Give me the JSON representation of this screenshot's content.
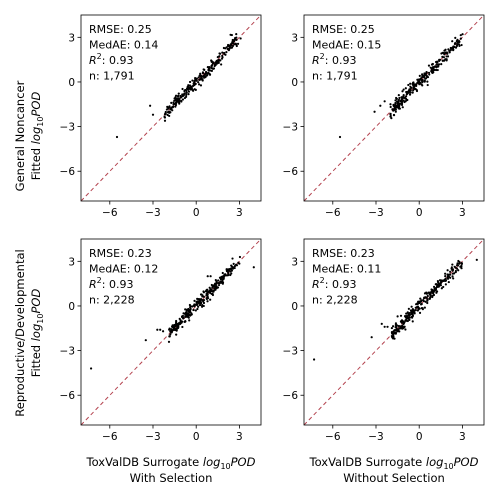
{
  "figure": {
    "row_labels": [
      {
        "line1": "General Noncancer",
        "line2_prefix": "Fitted ",
        "line2_math": "log",
        "line2_sub": "10",
        "line2_tail": "POD"
      },
      {
        "line1": "Reproductive/Developmental",
        "line2_prefix": "Fitted ",
        "line2_math": "log",
        "line2_sub": "10",
        "line2_tail": "POD"
      }
    ],
    "col_labels": [
      {
        "line1_prefix": "ToxValDB Surrogate ",
        "line1_math": "log",
        "line1_sub": "10",
        "line1_tail": "POD",
        "line2": "With Selection"
      },
      {
        "line1_prefix": "ToxValDB Surrogate ",
        "line1_math": "log",
        "line1_sub": "10",
        "line1_tail": "POD",
        "line2": "Without Selection"
      }
    ]
  },
  "chart_data": [
    {
      "type": "scatter",
      "panel": "General Noncancer / With Selection",
      "stats": {
        "rmse": "RMSE: 0.25",
        "medae": "MedAE: 0.14",
        "r2_prefix": "R",
        "r2_sup": "2",
        "r2_value": ": 0.93",
        "n": "n: 1,791"
      },
      "xlim": [
        -8,
        4.5
      ],
      "ylim": [
        -8,
        4.5
      ],
      "xticks": [
        -6,
        -3,
        0,
        3
      ],
      "yticks": [
        -6,
        -3,
        0,
        3
      ],
      "identity_line": true,
      "outliers": [
        [
          -5.5,
          -3.7
        ],
        [
          -3.2,
          -1.6
        ],
        [
          -3,
          -2.2
        ]
      ],
      "trend": {
        "x_range": [
          -2.2,
          3.1
        ],
        "spread": 0.22,
        "count": 260,
        "seed": 11
      }
    },
    {
      "type": "scatter",
      "panel": "General Noncancer / Without Selection",
      "stats": {
        "rmse": "RMSE: 0.25",
        "medae": "MedAE: 0.15",
        "r2_prefix": "R",
        "r2_sup": "2",
        "r2_value": ": 0.93",
        "n": "n: 1,791"
      },
      "xlim": [
        -8,
        4.5
      ],
      "ylim": [
        -8,
        4.5
      ],
      "xticks": [
        -6,
        -3,
        0,
        3
      ],
      "yticks": [
        -6,
        -3,
        0,
        3
      ],
      "identity_line": true,
      "outliers": [
        [
          -5.5,
          -3.7
        ],
        [
          -2.7,
          -1.6
        ],
        [
          -3.1,
          -2.0
        ],
        [
          -2.4,
          -1.3
        ]
      ],
      "trend": {
        "x_range": [
          -2.0,
          3.1
        ],
        "spread": 0.22,
        "count": 260,
        "seed": 23
      }
    },
    {
      "type": "scatter",
      "panel": "Reproductive/Developmental / With Selection",
      "stats": {
        "rmse": "RMSE: 0.23",
        "medae": "MedAE: 0.12",
        "r2_prefix": "R",
        "r2_sup": "2",
        "r2_value": ": 0.93",
        "n": "n: 2,228"
      },
      "xlim": [
        -8,
        4.5
      ],
      "ylim": [
        -8,
        4.5
      ],
      "xticks": [
        -6,
        -3,
        0,
        3
      ],
      "yticks": [
        -6,
        -3,
        0,
        3
      ],
      "identity_line": true,
      "outliers": [
        [
          -7.3,
          -4.2
        ],
        [
          -3.5,
          -2.3
        ],
        [
          -2.5,
          -1.6
        ],
        [
          -2.7,
          -1.6
        ],
        [
          -2.3,
          -1.7
        ],
        [
          4,
          2.6
        ],
        [
          0.8,
          2.0
        ],
        [
          1.0,
          2.0
        ]
      ],
      "trend": {
        "x_range": [
          -1.9,
          3.1
        ],
        "spread": 0.22,
        "count": 280,
        "seed": 37
      }
    },
    {
      "type": "scatter",
      "panel": "Reproductive/Developmental / Without Selection",
      "stats": {
        "rmse": "RMSE: 0.23",
        "medae": "MedAE: 0.11",
        "r2_prefix": "R",
        "r2_sup": "2",
        "r2_value": ": 0.93",
        "n": "n: 2,228"
      },
      "xlim": [
        -8,
        4.5
      ],
      "ylim": [
        -8,
        4.5
      ],
      "xticks": [
        -6,
        -3,
        0,
        3
      ],
      "yticks": [
        -6,
        -3,
        0,
        3
      ],
      "identity_line": true,
      "outliers": [
        [
          -7.3,
          -3.6
        ],
        [
          -3.3,
          -2.1
        ],
        [
          -2.6,
          -1.2
        ],
        [
          -2.2,
          -1.4
        ],
        [
          -2.4,
          -1.4
        ],
        [
          4,
          3.1
        ],
        [
          -1.5,
          -0.7
        ]
      ],
      "trend": {
        "x_range": [
          -1.9,
          3.1
        ],
        "spread": 0.22,
        "count": 280,
        "seed": 53
      }
    }
  ],
  "colors": {
    "points": "#000000",
    "identity_line": "#b4434f",
    "frame": "#000000",
    "background": "#ffffff"
  }
}
